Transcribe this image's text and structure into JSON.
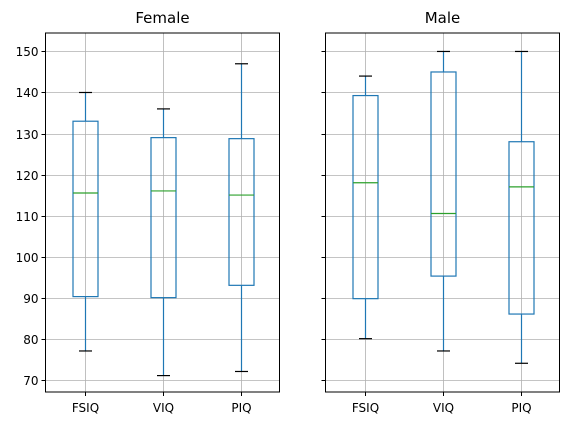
{
  "chart_data": [
    {
      "type": "box",
      "title": "Female",
      "categories": [
        "FSIQ",
        "VIQ",
        "PIQ"
      ],
      "boxes": [
        {
          "category": "FSIQ",
          "whisker_low": 77,
          "q1": 90.25,
          "median": 115.5,
          "q3": 133,
          "whisker_high": 140
        },
        {
          "category": "VIQ",
          "whisker_low": 71,
          "q1": 90,
          "median": 116,
          "q3": 129,
          "whisker_high": 136
        },
        {
          "category": "PIQ",
          "whisker_low": 72,
          "q1": 93,
          "median": 115,
          "q3": 128.75,
          "whisker_high": 147
        }
      ],
      "ylim": [
        67,
        154.5
      ],
      "yticks": [
        70,
        80,
        90,
        100,
        110,
        120,
        130,
        140,
        150
      ],
      "grid": true
    },
    {
      "type": "box",
      "title": "Male",
      "categories": [
        "FSIQ",
        "VIQ",
        "PIQ"
      ],
      "boxes": [
        {
          "category": "FSIQ",
          "whisker_low": 80,
          "q1": 89.75,
          "median": 118,
          "q3": 139.25,
          "whisker_high": 144
        },
        {
          "category": "VIQ",
          "whisker_low": 77,
          "q1": 95.25,
          "median": 110.5,
          "q3": 145,
          "whisker_high": 150
        },
        {
          "category": "PIQ",
          "whisker_low": 74,
          "q1": 86,
          "median": 117,
          "q3": 128,
          "whisker_high": 150
        }
      ],
      "ylim": [
        67,
        154.5
      ],
      "yticks": [
        70,
        80,
        90,
        100,
        110,
        120,
        130,
        140,
        150
      ],
      "grid": true
    }
  ],
  "colors": {
    "box": "#1f77b4",
    "median": "#2ca02c",
    "whisker_cap": "#000000",
    "grid": "#b0b0b0",
    "axes": "#000000"
  }
}
